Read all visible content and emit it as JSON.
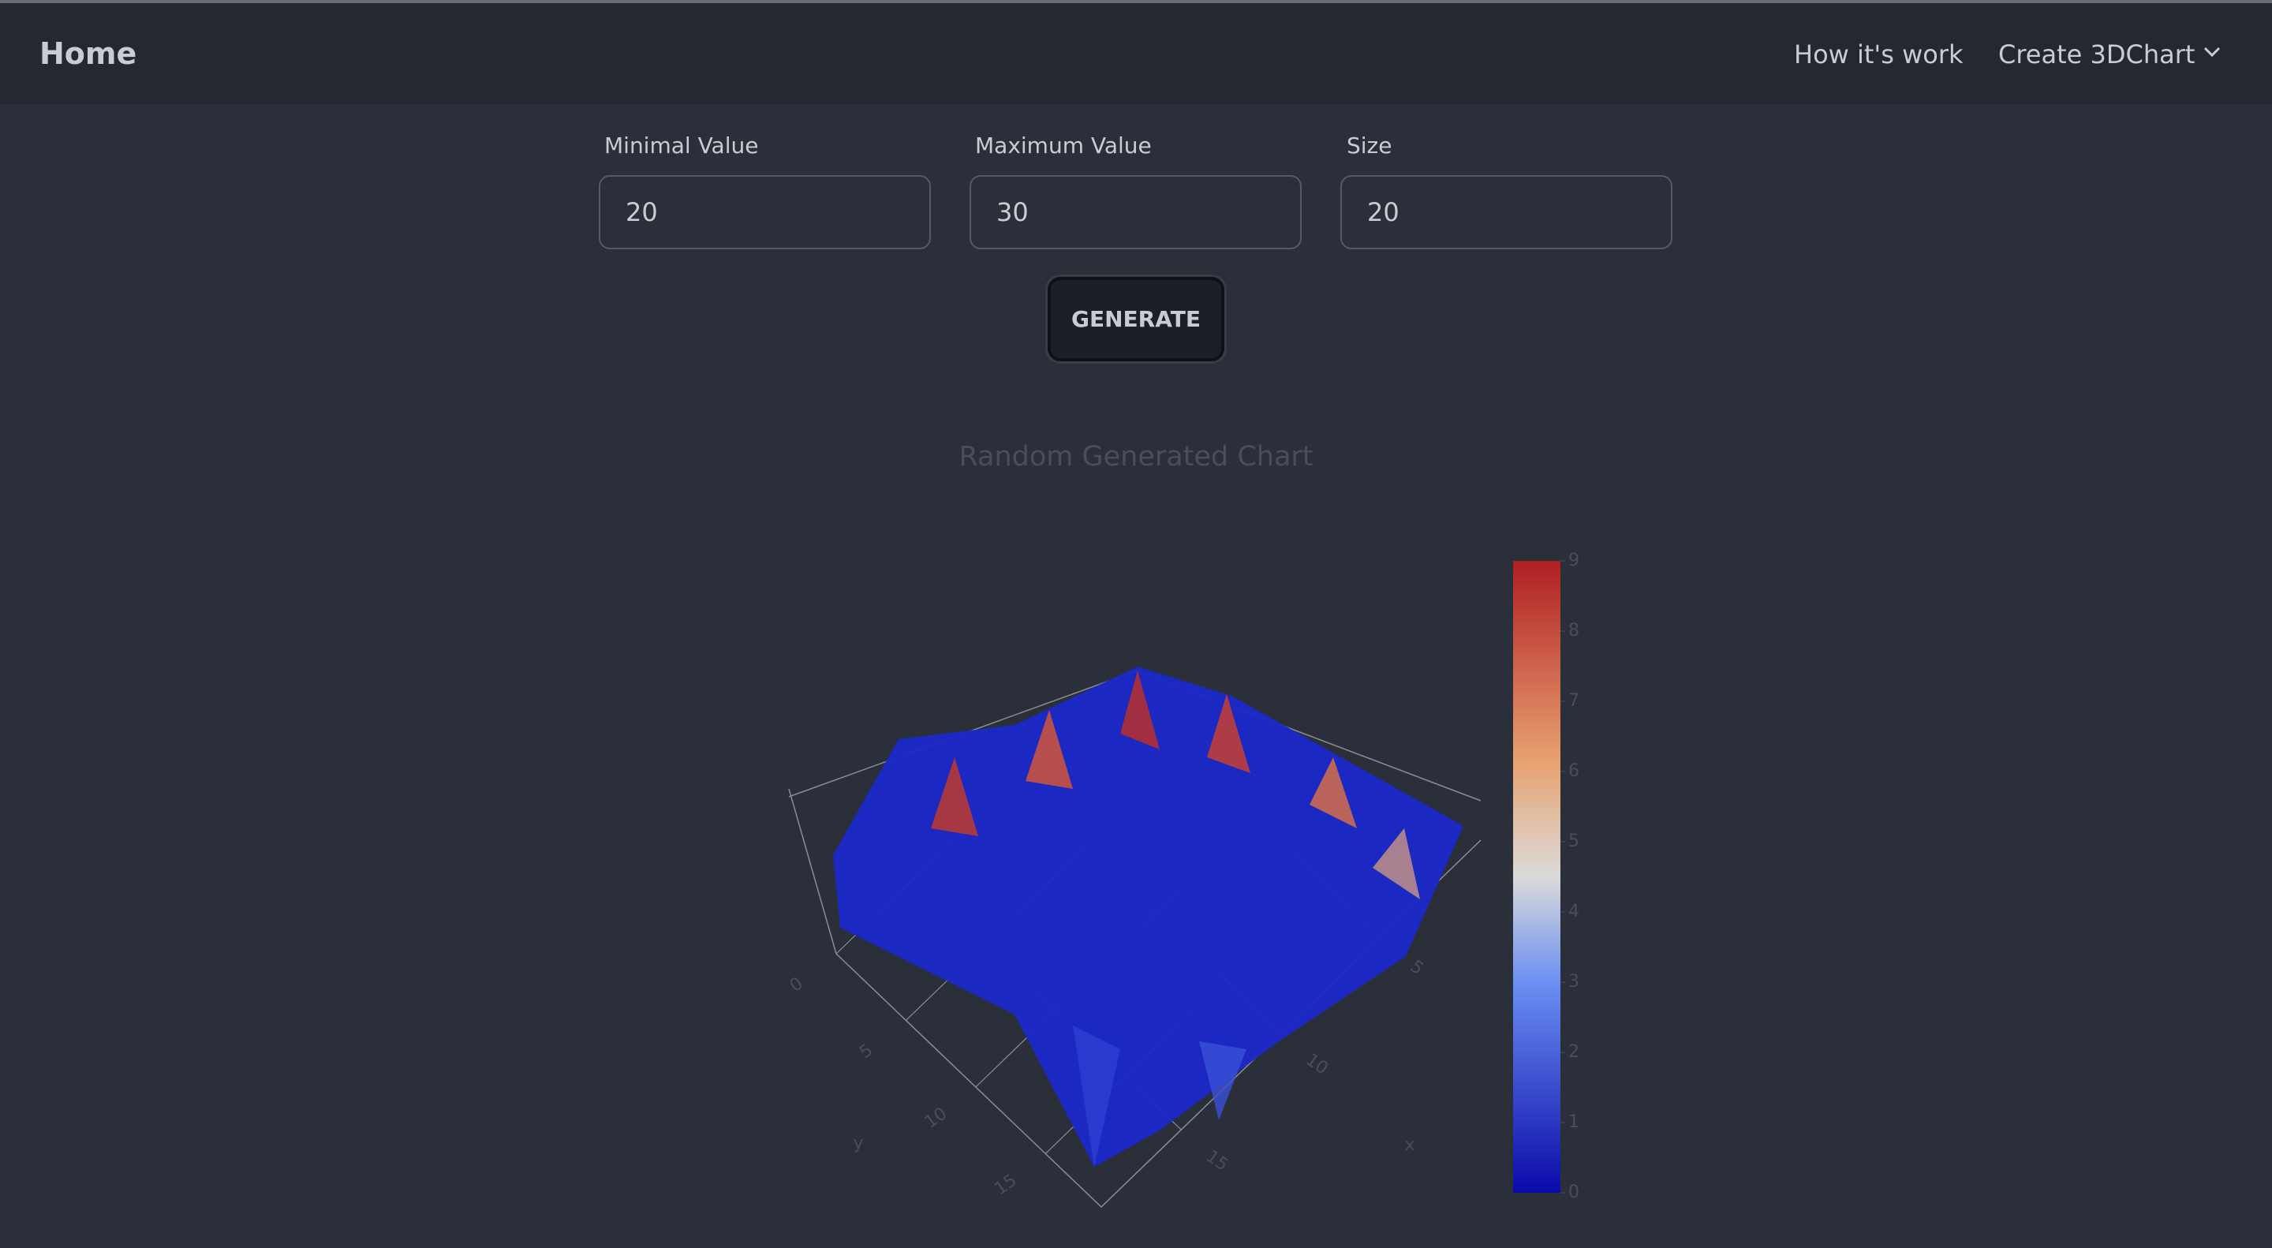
{
  "nav": {
    "brand": "Home",
    "links": [
      "How it's work",
      "Create 3DChart"
    ]
  },
  "form": {
    "fields": [
      {
        "label": "Minimal Value",
        "value": "20"
      },
      {
        "label": "Maximum Value",
        "value": "30"
      },
      {
        "label": "Size",
        "value": "20"
      }
    ],
    "button": "GENERATE"
  },
  "chart_data": {
    "type": "surface",
    "title": "Random Generated Chart",
    "x_label": "x",
    "y_label": "y",
    "xticks": [
      5,
      10,
      15
    ],
    "yticks": [
      0,
      5,
      10,
      15
    ],
    "colorbar": {
      "range": [
        0,
        9
      ],
      "ticks": [
        0,
        1,
        2,
        3,
        4,
        5,
        6,
        7,
        8,
        9
      ]
    }
  }
}
